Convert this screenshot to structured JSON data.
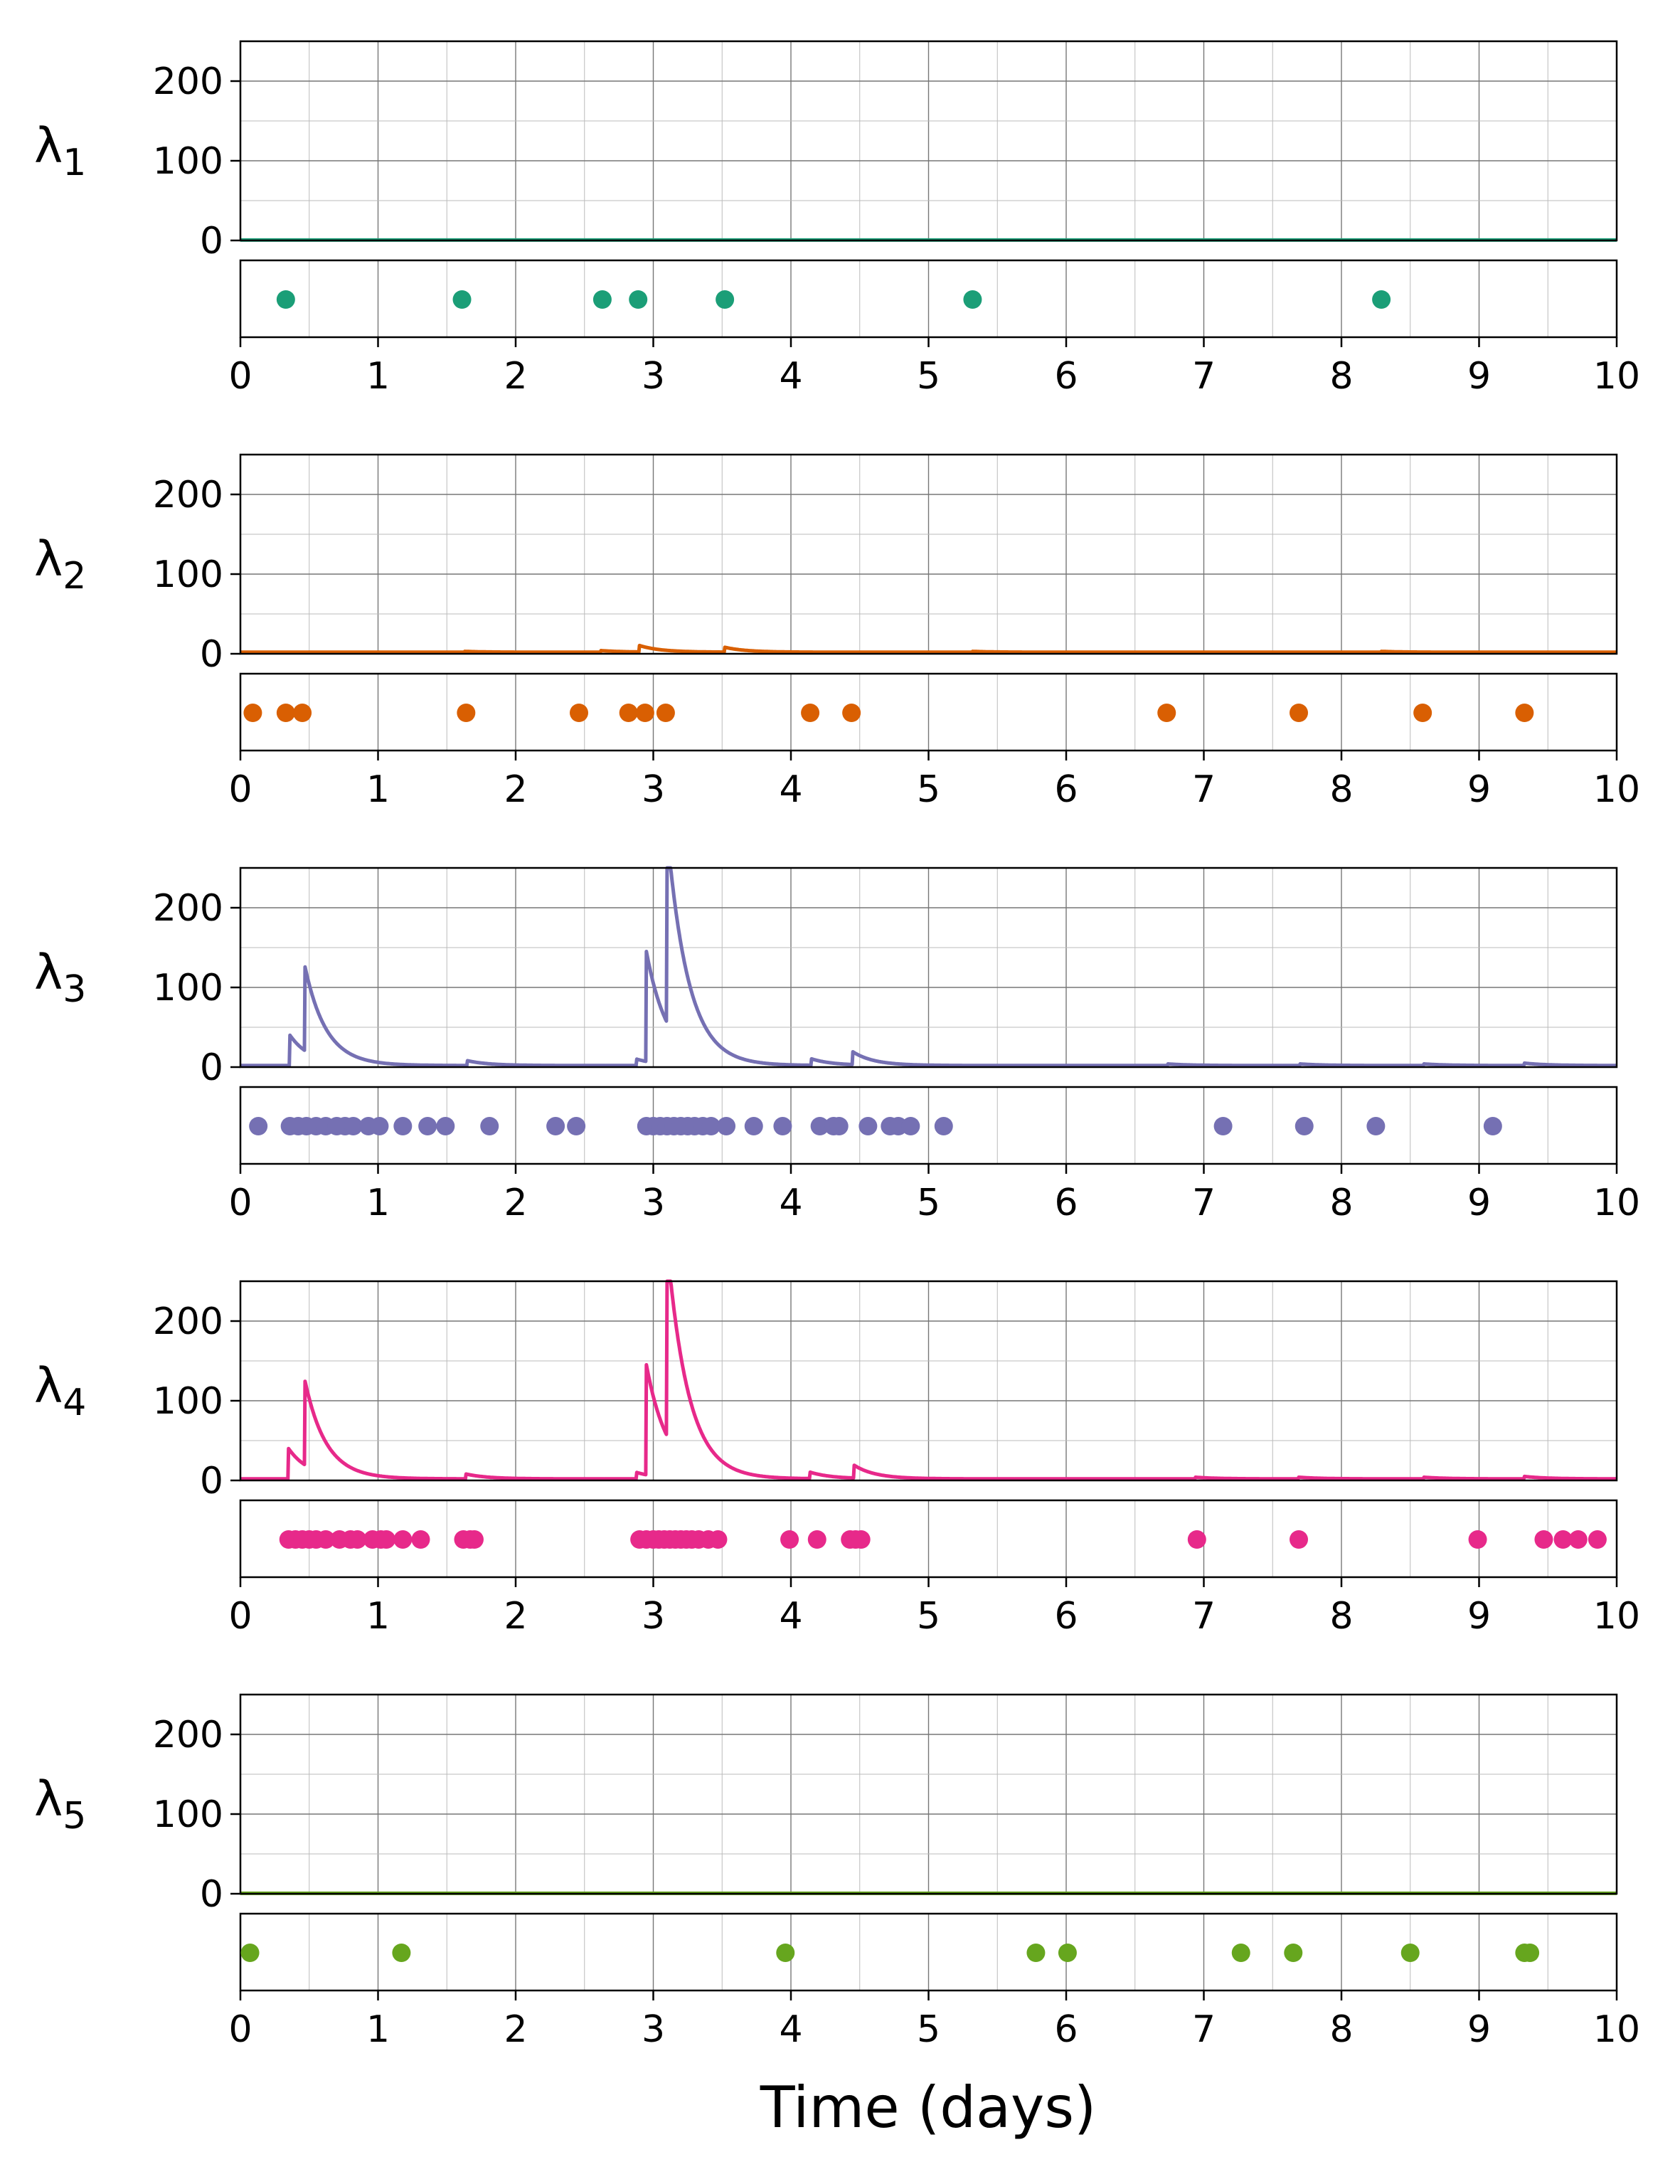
{
  "chart_data": {
    "type": "line",
    "xlabel": "Time (days)",
    "xlim": [
      0,
      10
    ],
    "x_ticks": [
      0,
      1,
      2,
      3,
      4,
      5,
      6,
      7,
      8,
      9,
      10
    ],
    "ylim": [
      0,
      250
    ],
    "y_ticks": [
      0,
      100,
      200
    ],
    "grid": true,
    "panels": [
      {
        "label": "λ",
        "subscript": "1",
        "color": "#1b9e77",
        "intensity_peaks": [],
        "events": [
          0.33,
          1.61,
          2.63,
          2.89,
          3.52,
          5.32,
          8.29
        ]
      },
      {
        "label": "λ",
        "subscript": "2",
        "color": "#d95f02",
        "intensity_peaks": [
          {
            "x": 1.63,
            "y": 3
          },
          {
            "x": 2.62,
            "y": 4
          },
          {
            "x": 2.9,
            "y": 10
          },
          {
            "x": 3.52,
            "y": 8
          },
          {
            "x": 5.32,
            "y": 3
          },
          {
            "x": 8.29,
            "y": 3
          }
        ],
        "events": [
          0.09,
          0.33,
          0.45,
          1.64,
          2.46,
          2.82,
          2.94,
          3.09,
          4.14,
          4.44,
          6.73,
          7.69,
          8.59,
          9.33
        ]
      },
      {
        "label": "λ",
        "subscript": "3",
        "color": "#7570b3",
        "intensity_peaks": [
          {
            "x": 0.36,
            "y": 40
          },
          {
            "x": 0.47,
            "y": 107
          },
          {
            "x": 1.65,
            "y": 8
          },
          {
            "x": 2.88,
            "y": 10
          },
          {
            "x": 2.95,
            "y": 140
          },
          {
            "x": 3.1,
            "y": 242
          },
          {
            "x": 4.15,
            "y": 10
          },
          {
            "x": 4.45,
            "y": 18
          },
          {
            "x": 6.74,
            "y": 4
          },
          {
            "x": 7.7,
            "y": 4
          },
          {
            "x": 8.6,
            "y": 4
          },
          {
            "x": 9.33,
            "y": 5
          }
        ],
        "events": [
          0.13,
          0.36,
          0.42,
          0.48,
          0.55,
          0.62,
          0.7,
          0.76,
          0.82,
          0.93,
          1.01,
          1.18,
          1.36,
          1.49,
          1.81,
          2.29,
          2.44,
          2.95,
          3.0,
          3.05,
          3.1,
          3.15,
          3.2,
          3.25,
          3.3,
          3.36,
          3.42,
          3.53,
          3.73,
          3.94,
          4.21,
          4.31,
          4.35,
          4.56,
          4.72,
          4.78,
          4.87,
          5.11,
          7.14,
          7.73,
          8.25,
          9.1
        ]
      },
      {
        "label": "λ",
        "subscript": "4",
        "color": "#e7298a",
        "intensity_peaks": [
          {
            "x": 0.35,
            "y": 40
          },
          {
            "x": 0.47,
            "y": 107
          },
          {
            "x": 1.64,
            "y": 8
          },
          {
            "x": 2.88,
            "y": 10
          },
          {
            "x": 2.95,
            "y": 140
          },
          {
            "x": 3.1,
            "y": 243
          },
          {
            "x": 4.14,
            "y": 10
          },
          {
            "x": 4.46,
            "y": 18
          },
          {
            "x": 6.94,
            "y": 4
          },
          {
            "x": 7.69,
            "y": 4
          },
          {
            "x": 8.6,
            "y": 4
          },
          {
            "x": 9.33,
            "y": 5
          }
        ],
        "events": [
          0.35,
          0.4,
          0.45,
          0.5,
          0.55,
          0.62,
          0.72,
          0.8,
          0.85,
          0.96,
          1.02,
          1.06,
          1.18,
          1.31,
          1.62,
          1.67,
          1.7,
          2.9,
          2.95,
          3.0,
          3.04,
          3.08,
          3.12,
          3.16,
          3.2,
          3.24,
          3.28,
          3.33,
          3.4,
          3.47,
          3.99,
          4.19,
          4.43,
          4.47,
          4.51,
          6.95,
          7.69,
          8.99,
          9.47,
          9.61,
          9.72,
          9.86
        ]
      },
      {
        "label": "λ",
        "subscript": "5",
        "color": "#66a61e",
        "intensity_peaks": [],
        "events": [
          0.07,
          1.17,
          3.96,
          5.78,
          6.01,
          7.27,
          7.65,
          8.5,
          9.33,
          9.37
        ]
      }
    ]
  }
}
